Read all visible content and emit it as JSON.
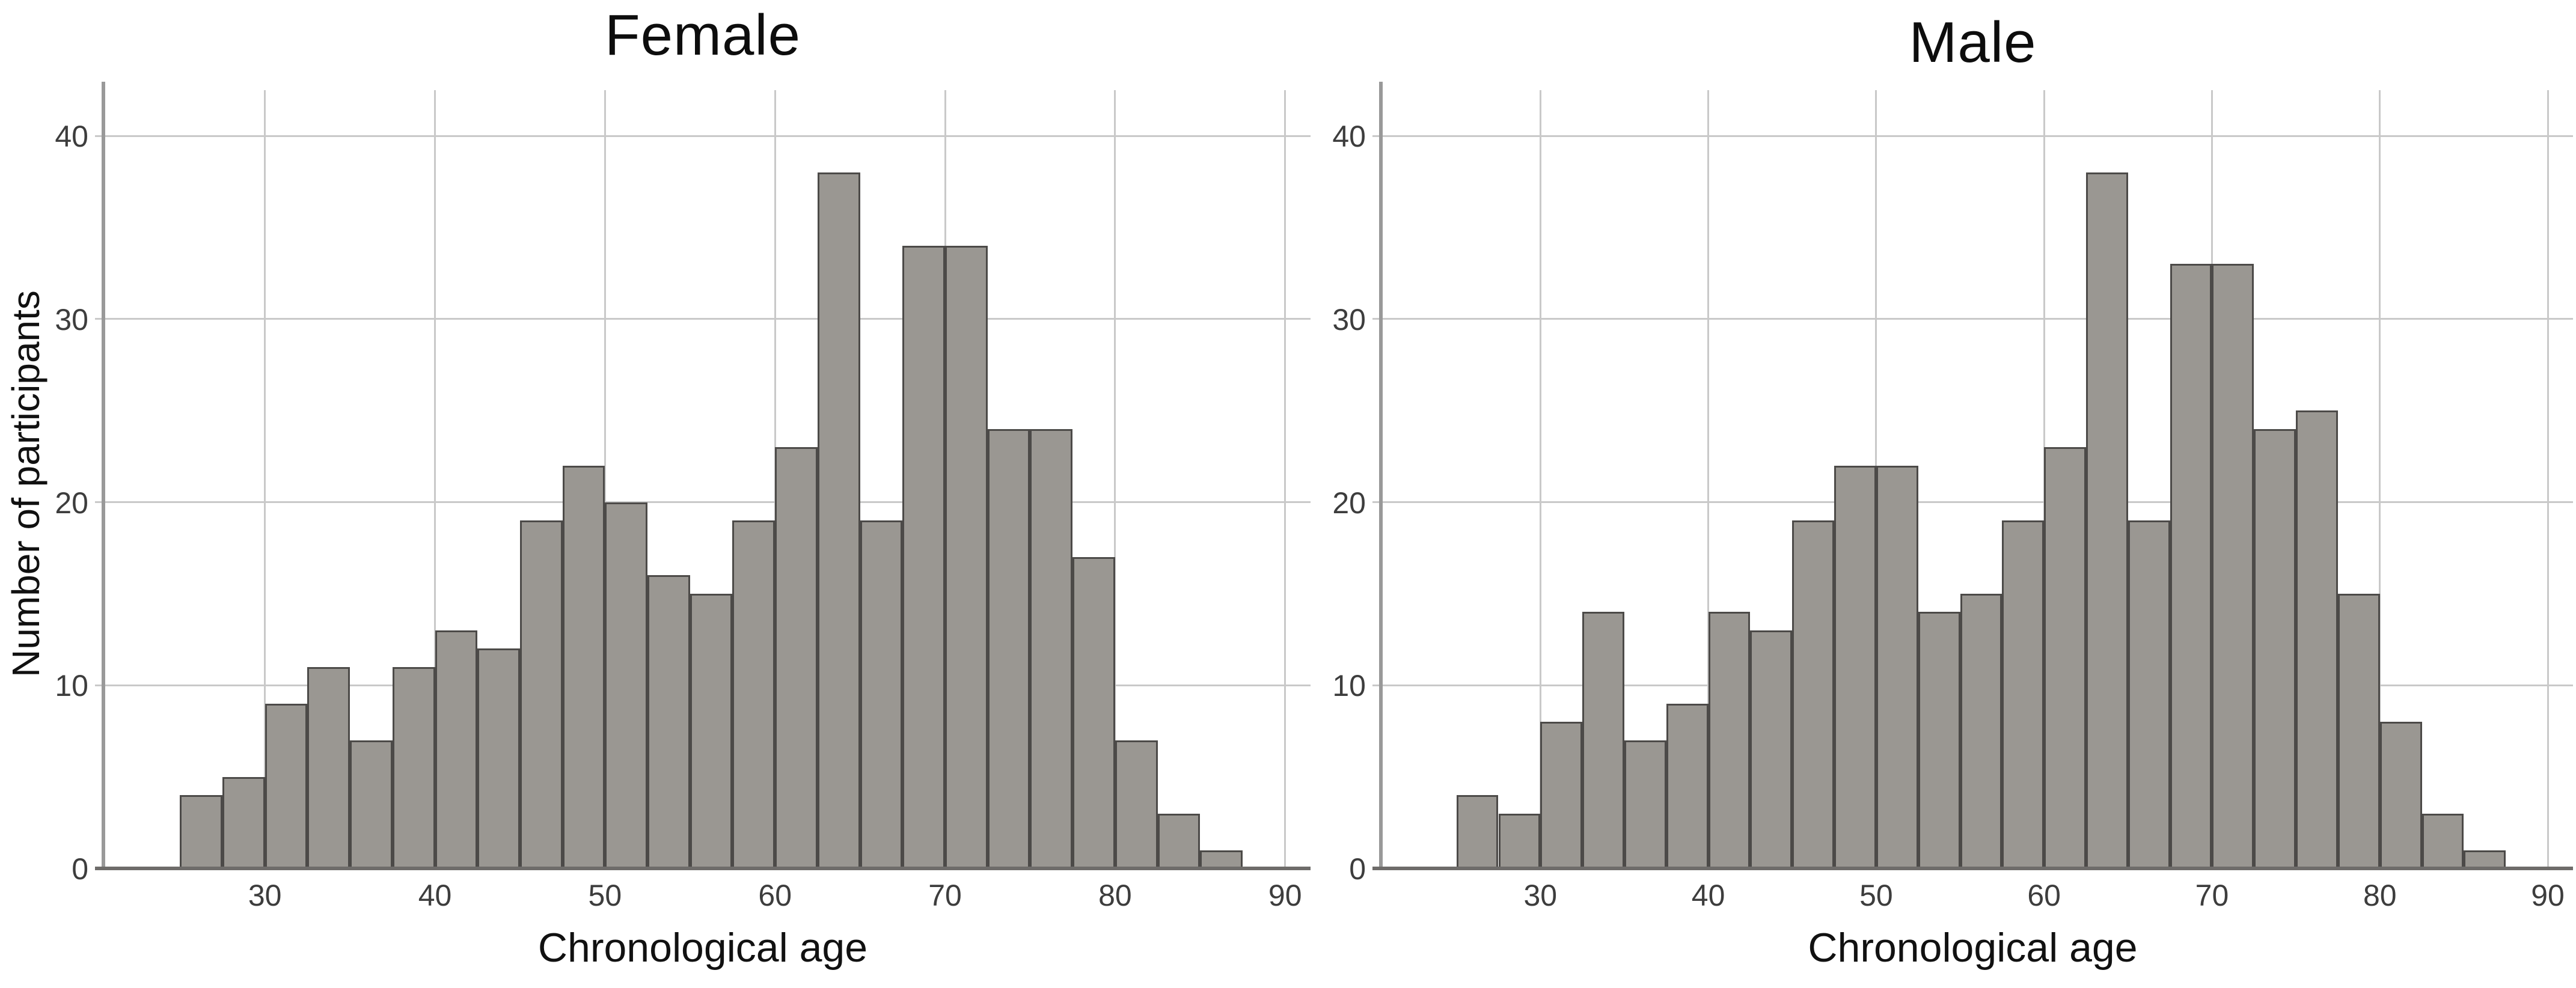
{
  "figure": {
    "background": "#ffffff",
    "layout": "two histograms side by side"
  },
  "chart_data": [
    {
      "type": "bar",
      "subtype": "histogram",
      "title": "Female",
      "xlabel": "Chronological age",
      "ylabel": "Number of participants",
      "bins": {
        "start": 25,
        "width": 2.5
      },
      "counts": [
        4,
        5,
        9,
        11,
        7,
        11,
        13,
        12,
        19,
        22,
        20,
        16,
        15,
        19,
        23,
        38,
        19,
        34,
        34,
        24,
        24,
        17,
        7,
        3,
        1
      ],
      "x_ticks": [
        30,
        40,
        50,
        60,
        70,
        80,
        90
      ],
      "y_ticks": [
        0,
        10,
        20,
        30,
        40
      ],
      "xlim": [
        20.5,
        91
      ],
      "ylim": [
        0,
        42.5
      ],
      "grid": true,
      "legend": null
    },
    {
      "type": "bar",
      "subtype": "histogram",
      "title": "Male",
      "xlabel": "Chronological age",
      "ylabel": "",
      "bins": {
        "start": 25,
        "width": 2.5
      },
      "counts": [
        4,
        3,
        8,
        14,
        7,
        9,
        14,
        13,
        19,
        22,
        22,
        14,
        15,
        19,
        23,
        38,
        19,
        33,
        33,
        24,
        25,
        15,
        8,
        3,
        1
      ],
      "x_ticks": [
        30,
        40,
        50,
        60,
        70,
        80,
        90
      ],
      "y_ticks": [
        0,
        10,
        20,
        30,
        40
      ],
      "xlim": [
        20.5,
        91
      ],
      "ylim": [
        0,
        42.5
      ],
      "grid": true,
      "legend": null
    }
  ],
  "style": {
    "bar_fill": "#9a9792",
    "bar_border": "#4c4a48",
    "grid_color": "#c9c9c9",
    "y_axis_color": "#999999",
    "x_axis_color": "#6e6c6a",
    "tick_label_color": "#3d3d3d",
    "title_color": "#0d0d0d",
    "axis_label_color": "#111111"
  }
}
